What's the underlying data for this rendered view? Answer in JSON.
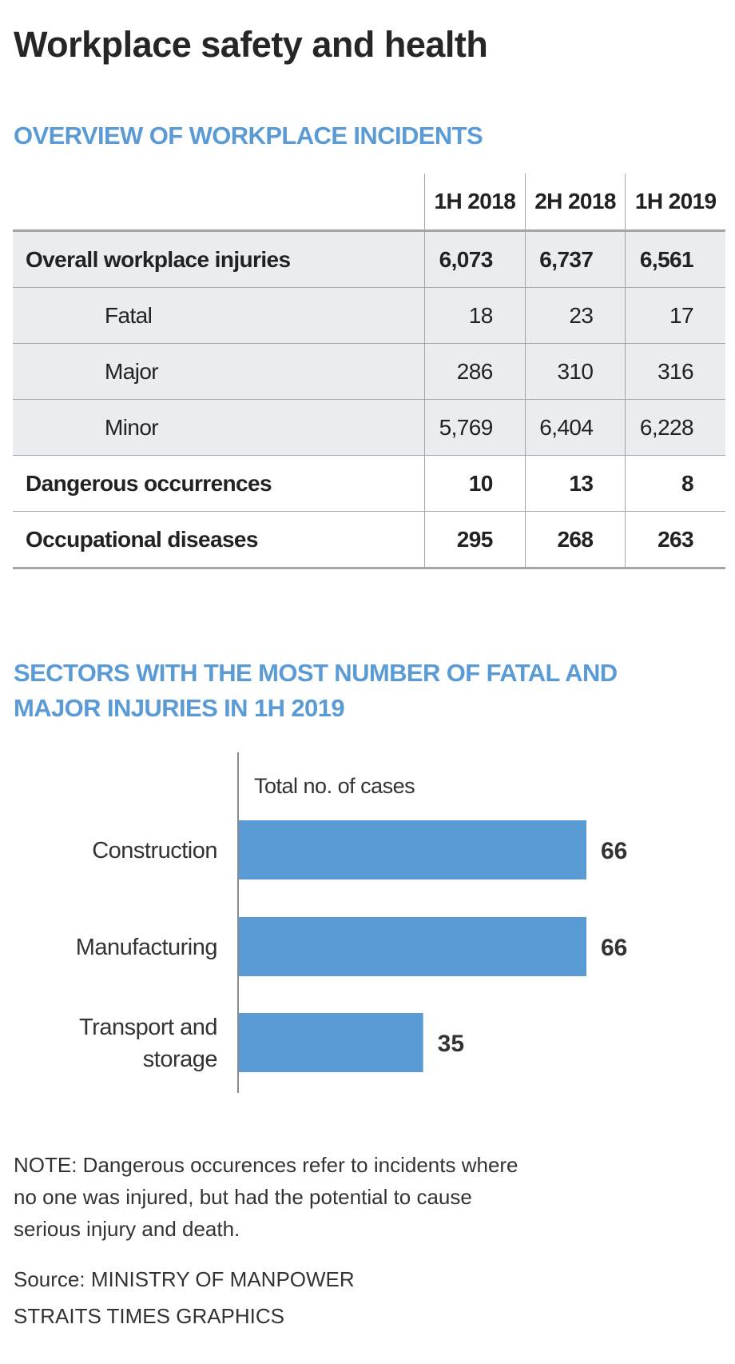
{
  "title": "Workplace safety and health",
  "table_section": {
    "heading": "OVERVIEW OF WORKPLACE INCIDENTS",
    "columns": [
      "1H 2018",
      "2H 2018",
      "1H 2019"
    ],
    "rows": [
      {
        "label": "Overall workplace injuries",
        "values": [
          "6,073",
          "6,737",
          "6,561"
        ],
        "bold": true,
        "shaded": true,
        "indent": false
      },
      {
        "label": "Fatal",
        "values": [
          "18",
          "23",
          "17"
        ],
        "bold": false,
        "shaded": true,
        "indent": true
      },
      {
        "label": "Major",
        "values": [
          "286",
          "310",
          "316"
        ],
        "bold": false,
        "shaded": true,
        "indent": true
      },
      {
        "label": "Minor",
        "values": [
          "5,769",
          "6,404",
          "6,228"
        ],
        "bold": false,
        "shaded": true,
        "indent": true
      },
      {
        "label": "Dangerous occurrences",
        "values": [
          "10",
          "13",
          "8"
        ],
        "bold": true,
        "shaded": false,
        "indent": false
      },
      {
        "label": "Occupational diseases",
        "values": [
          "295",
          "268",
          "263"
        ],
        "bold": true,
        "shaded": false,
        "indent": false
      }
    ]
  },
  "chart_section": {
    "heading_line1": "SECTORS WITH THE MOST NUMBER OF FATAL AND",
    "heading_line2": "MAJOR INJURIES IN 1H 2019"
  },
  "chart_data": {
    "type": "bar",
    "orientation": "horizontal",
    "title": "SECTORS WITH THE MOST NUMBER OF FATAL AND MAJOR INJURIES IN 1H 2019",
    "xlabel": "Total no. of cases",
    "ylabel": "",
    "categories": [
      [
        "Construction"
      ],
      [
        "Manufacturing"
      ],
      [
        "Transport and",
        "storage"
      ]
    ],
    "values": [
      66,
      66,
      35
    ],
    "xlim": [
      0,
      66
    ],
    "grid": false,
    "bar_color": "#5b9bd5"
  },
  "footer": {
    "note_lines": [
      "NOTE: Dangerous occurences refer to incidents where",
      "no one was injured, but had the potential to cause",
      "serious injury and death."
    ],
    "source": "Source: MINISTRY OF MANPOWER",
    "credit": "STRAITS TIMES GRAPHICS"
  }
}
